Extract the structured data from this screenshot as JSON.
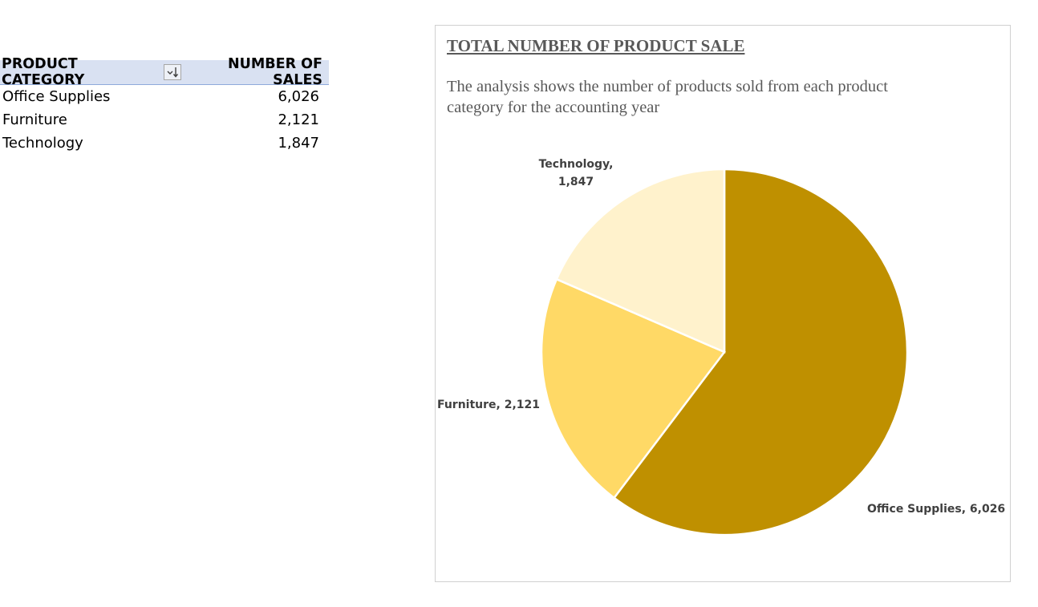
{
  "pivot": {
    "header_category": "PRODUCT CATEGORY",
    "header_sales": "NUMBER OF SALES",
    "rows": [
      {
        "category": "Office Supplies",
        "sales": "6,026"
      },
      {
        "category": "Furniture",
        "sales": "2,121"
      },
      {
        "category": "Technology",
        "sales": "1,847"
      }
    ]
  },
  "chart_data": {
    "type": "pie",
    "title": "TOTAL NUMBER OF PRODUCT SALE",
    "subtitle": "The analysis shows the number of products sold from each product category for the accounting year",
    "categories": [
      "Office Supplies",
      "Furniture",
      "Technology"
    ],
    "values": [
      6026,
      2121,
      1847
    ],
    "labels": [
      "Office Supplies,  6,026",
      "Furniture,  2,121",
      "Technology, 1,847"
    ],
    "colors": [
      "#bf9000",
      "#ffd966",
      "#fff2cc"
    ],
    "legend": "none"
  }
}
